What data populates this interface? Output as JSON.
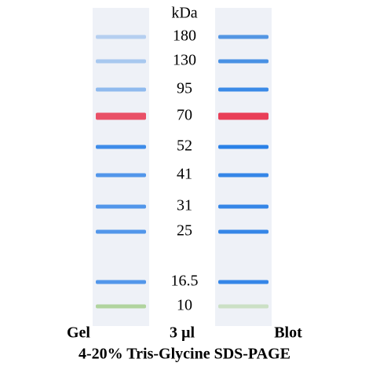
{
  "unit": "kDa",
  "markers": [
    {
      "label": "180",
      "color": "#4a90e2"
    },
    {
      "label": "130",
      "color": "#3f8be3"
    },
    {
      "label": "95",
      "color": "#2f84e6"
    },
    {
      "label": "70",
      "color": "#e8344e"
    },
    {
      "label": "52",
      "color": "#1f7ae6"
    },
    {
      "label": "41",
      "color": "#2a80e6"
    },
    {
      "label": "31",
      "color": "#2a80e6"
    },
    {
      "label": "25",
      "color": "#2a80e6"
    },
    {
      "label": "16.5",
      "color": "#2a80e6"
    },
    {
      "label": "10",
      "color": "#a8d094"
    }
  ],
  "lanes": {
    "gel": "Gel",
    "volume": "3 µl",
    "blot": "Blot"
  },
  "caption": "4-20% Tris-Glycine SDS-PAGE"
}
